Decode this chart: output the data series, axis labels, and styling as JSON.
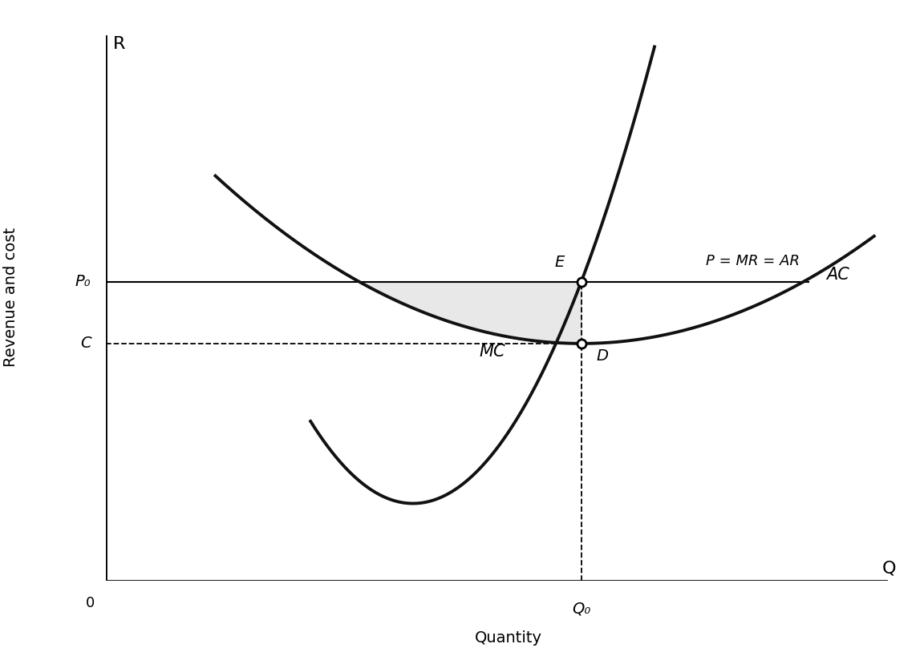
{
  "title": "",
  "xlabel": "Quantity",
  "ylabel": "Revenue and cost",
  "x_axis_label": "Q",
  "y_axis_label": "R",
  "origin_label": "0",
  "P0_label": "P₀",
  "C_label": "C",
  "Q0_label": "Q₀",
  "E_label": "E",
  "D_label": "D",
  "MC_label": "MC",
  "AC_label": "AC",
  "PMR_label": "P = MR = AR",
  "P0_y": 5.8,
  "C_y": 4.6,
  "Q0_x": 6.5,
  "xlim": [
    0,
    11
  ],
  "ylim": [
    0,
    11
  ],
  "background_color": "#ffffff",
  "curve_color": "#111111",
  "line_color": "#000000",
  "fill_color": "#cccccc",
  "fill_alpha": 0.45,
  "curve_linewidth": 2.8,
  "mr_linewidth": 1.5,
  "dashed_linewidth": 1.3,
  "axis_linewidth": 2.0,
  "ac_x_start": 1.5,
  "ac_x_end": 10.5,
  "ac_a": 0.13,
  "mc_q_min": 4.2,
  "mc_min_val": 1.5,
  "mc_x_start": 2.8,
  "mc_x_end": 7.5
}
